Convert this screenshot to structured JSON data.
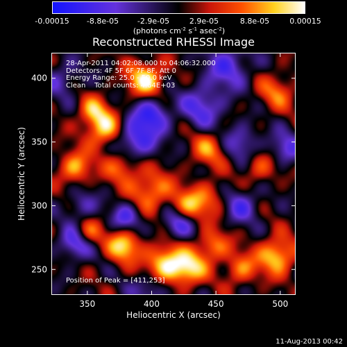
{
  "chart_data": {
    "type": "heatmap",
    "title": "Reconstructed RHESSI Image",
    "xlabel": "Heliocentric X (arcsec)",
    "ylabel": "Heliocentric Y (arcsec)",
    "xlim": [
      322,
      512
    ],
    "ylim": [
      230,
      420
    ],
    "x_ticks": [
      "350",
      "400",
      "450",
      "500"
    ],
    "y_ticks": [
      "250",
      "300",
      "350",
      "400"
    ],
    "colorbar": {
      "ticks": [
        "-0.00015",
        "-8.8e-05",
        "-2.9e-05",
        "2.9e-05",
        "8.8e-05",
        "0.00015"
      ],
      "unit_parts": [
        "(photons cm",
        "-2",
        " s",
        "-1",
        " asec",
        "-2",
        ")"
      ],
      "range": [
        -0.00015,
        0.00015
      ]
    },
    "annotations": {
      "time_range": "28-Apr-2011 04:02:08.000 to 04:06:32.000",
      "detectors": "Detectors: 4F 5F 6F 7F 8F, Att 0",
      "energy": "Energy Range: 25.0 - 50.0 keV",
      "clean_label": "Clean",
      "total_counts": "Total counts: 4.64E+03",
      "peak": "Position of Peak = [411,253]"
    },
    "blobs": [
      {
        "x": 411,
        "y": 253,
        "v": 1.0,
        "s": 11
      },
      {
        "x": 395,
        "y": 400,
        "v": 0.9,
        "s": 10
      },
      {
        "x": 378,
        "y": 268,
        "v": 0.85,
        "s": 9
      },
      {
        "x": 363,
        "y": 360,
        "v": 0.85,
        "s": 10
      },
      {
        "x": 340,
        "y": 330,
        "v": 0.7,
        "s": 9
      },
      {
        "x": 354,
        "y": 375,
        "v": 0.6,
        "s": 8
      },
      {
        "x": 378,
        "y": 332,
        "v": 0.65,
        "s": 10
      },
      {
        "x": 400,
        "y": 312,
        "v": 0.65,
        "s": 11
      },
      {
        "x": 428,
        "y": 300,
        "v": 0.6,
        "s": 9
      },
      {
        "x": 445,
        "y": 305,
        "v": 0.45,
        "s": 10
      },
      {
        "x": 445,
        "y": 345,
        "v": 0.55,
        "s": 10
      },
      {
        "x": 498,
        "y": 390,
        "v": 0.5,
        "s": 10
      },
      {
        "x": 485,
        "y": 330,
        "v": 0.45,
        "s": 9
      },
      {
        "x": 498,
        "y": 260,
        "v": 0.85,
        "s": 10
      },
      {
        "x": 470,
        "y": 250,
        "v": 0.55,
        "s": 9
      },
      {
        "x": 448,
        "y": 268,
        "v": 0.6,
        "s": 9
      },
      {
        "x": 430,
        "y": 250,
        "v": 0.75,
        "s": 9
      },
      {
        "x": 350,
        "y": 278,
        "v": 0.55,
        "s": 8
      },
      {
        "x": 340,
        "y": 270,
        "v": -0.7,
        "s": 9
      },
      {
        "x": 386,
        "y": 350,
        "v": -0.8,
        "s": 12
      },
      {
        "x": 400,
        "y": 372,
        "v": -0.7,
        "s": 10
      },
      {
        "x": 440,
        "y": 378,
        "v": -0.6,
        "s": 12
      },
      {
        "x": 470,
        "y": 350,
        "v": -0.5,
        "s": 10
      },
      {
        "x": 460,
        "y": 410,
        "v": -0.6,
        "s": 12
      },
      {
        "x": 505,
        "y": 345,
        "v": -0.55,
        "s": 9
      },
      {
        "x": 470,
        "y": 300,
        "v": -0.55,
        "s": 10
      },
      {
        "x": 420,
        "y": 285,
        "v": -0.6,
        "s": 9
      },
      {
        "x": 400,
        "y": 235,
        "v": -0.5,
        "s": 10
      },
      {
        "x": 330,
        "y": 400,
        "v": -0.4,
        "s": 10
      },
      {
        "x": 345,
        "y": 300,
        "v": -0.4,
        "s": 9
      },
      {
        "x": 380,
        "y": 290,
        "v": -0.6,
        "s": 8
      }
    ]
  },
  "footer": {
    "date": "11-Aug-2013 00:42"
  }
}
